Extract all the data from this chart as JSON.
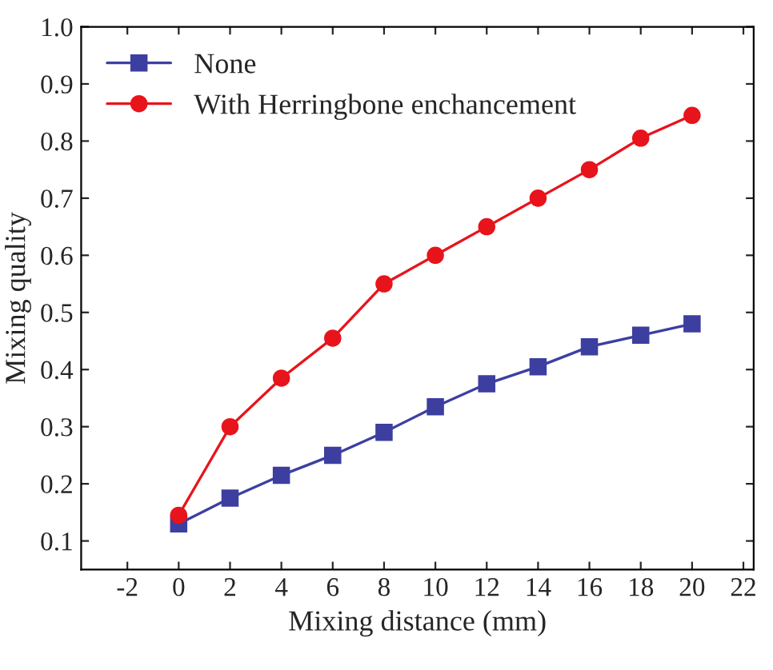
{
  "chart_data": {
    "type": "line",
    "xlabel": "Mixing distance (mm)",
    "ylabel": "Mixing quality",
    "x": [
      0,
      2,
      4,
      6,
      8,
      10,
      12,
      14,
      16,
      18,
      20
    ],
    "series": [
      {
        "name": "None",
        "color": "#3c3fa0",
        "marker": "square",
        "values": [
          0.13,
          0.175,
          0.215,
          0.25,
          0.29,
          0.335,
          0.375,
          0.405,
          0.44,
          0.46,
          0.48
        ]
      },
      {
        "name": "With Herringbone enchancement",
        "color": "#e8141c",
        "marker": "circle",
        "values": [
          0.145,
          0.3,
          0.385,
          0.455,
          0.55,
          0.6,
          0.65,
          0.7,
          0.75,
          0.805,
          0.845
        ]
      }
    ],
    "xlim": [
      -3.8,
      22.4
    ],
    "xticks": [
      -2,
      0,
      2,
      4,
      6,
      8,
      10,
      12,
      14,
      16,
      18,
      20,
      22
    ],
    "ylim": [
      0.05,
      1.0
    ],
    "yticks": [
      0.1,
      0.2,
      0.3,
      0.4,
      0.5,
      0.6,
      0.7,
      0.8,
      0.9,
      {
        "value": 1.0,
        "label": "1.0"
      }
    ],
    "legend": "top left",
    "grid": false,
    "line_style": "solid"
  }
}
